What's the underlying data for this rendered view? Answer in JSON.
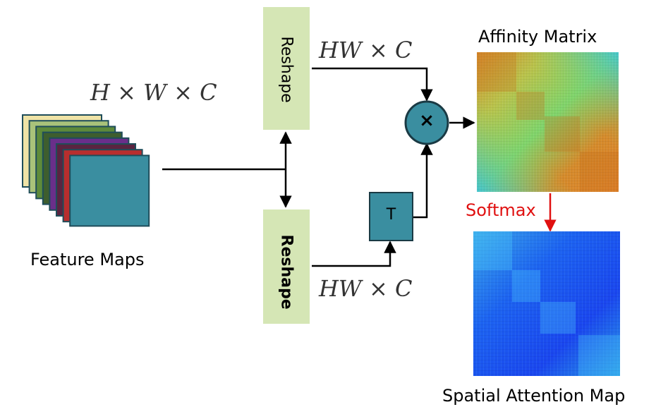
{
  "labels": {
    "input_dims": {
      "a": "H",
      "op1": "×",
      "b": "W",
      "op2": "×",
      "c": "C"
    },
    "top_dims": {
      "a": "HW",
      "op": "×",
      "b": "C"
    },
    "bottom_dims": {
      "a": "HW",
      "op": "×",
      "b": "C"
    },
    "feature_maps": "Feature Maps",
    "reshape_top": "Reshape",
    "reshape_bottom": "Reshape",
    "transpose": "T",
    "multiply": "×",
    "affinity_matrix": "Affinity Matrix",
    "softmax": "Softmax",
    "spatial_attention_map": "Spatial Attention Map"
  },
  "colors": {
    "reshape_fill": "#d5e6b5",
    "node_fill": "#3a8ea0",
    "node_stroke": "#1a4f5a",
    "arrow": "#000000",
    "softmax_arrow": "#e01010"
  },
  "feature_map_layer_colors": [
    "#efe3a6",
    "#a9c27a",
    "#5e8a3a",
    "#3e5e2e",
    "#6a2f8a",
    "#5a2440",
    "#b82e2e",
    "#3a8ea0"
  ],
  "icons": {
    "multiply_node": "multiply-circle-icon",
    "transpose_node": "transpose-box-icon"
  }
}
